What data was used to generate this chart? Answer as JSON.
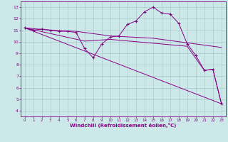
{
  "xlabel": "Windchill (Refroidissement éolien,°C)",
  "bg_color": "#cce8e8",
  "line_color": "#880088",
  "grid_color": "#aacccc",
  "xlim": [
    -0.5,
    23.5
  ],
  "ylim": [
    3.5,
    13.5
  ],
  "xticks": [
    0,
    1,
    2,
    3,
    4,
    5,
    6,
    7,
    8,
    9,
    10,
    11,
    12,
    13,
    14,
    15,
    16,
    17,
    18,
    19,
    20,
    21,
    22,
    23
  ],
  "yticks": [
    4,
    5,
    6,
    7,
    8,
    9,
    10,
    11,
    12,
    13
  ],
  "series1": [
    [
      0,
      11.2
    ],
    [
      1,
      11.0
    ],
    [
      2,
      11.1
    ],
    [
      3,
      11.0
    ],
    [
      4,
      10.9
    ],
    [
      5,
      10.9
    ],
    [
      6,
      10.8
    ],
    [
      7,
      9.4
    ],
    [
      8,
      8.6
    ],
    [
      9,
      9.8
    ],
    [
      10,
      10.4
    ],
    [
      11,
      10.5
    ],
    [
      12,
      11.5
    ],
    [
      13,
      11.8
    ],
    [
      14,
      12.6
    ],
    [
      15,
      13.0
    ],
    [
      16,
      12.5
    ],
    [
      17,
      12.4
    ],
    [
      18,
      11.6
    ],
    [
      19,
      9.8
    ],
    [
      20,
      8.8
    ],
    [
      21,
      7.5
    ],
    [
      22,
      7.6
    ],
    [
      23,
      4.6
    ]
  ],
  "line_straight": [
    [
      0,
      11.2
    ],
    [
      23,
      4.6
    ]
  ],
  "line_mid": [
    [
      0,
      11.2
    ],
    [
      7,
      10.05
    ],
    [
      10,
      10.2
    ],
    [
      19,
      9.6
    ],
    [
      21,
      7.5
    ],
    [
      22,
      7.6
    ],
    [
      23,
      4.6
    ]
  ],
  "line_upper": [
    [
      0,
      11.2
    ],
    [
      3,
      11.0
    ],
    [
      6,
      10.9
    ],
    [
      10,
      10.5
    ],
    [
      15,
      10.3
    ],
    [
      20,
      9.8
    ],
    [
      23,
      9.5
    ]
  ]
}
